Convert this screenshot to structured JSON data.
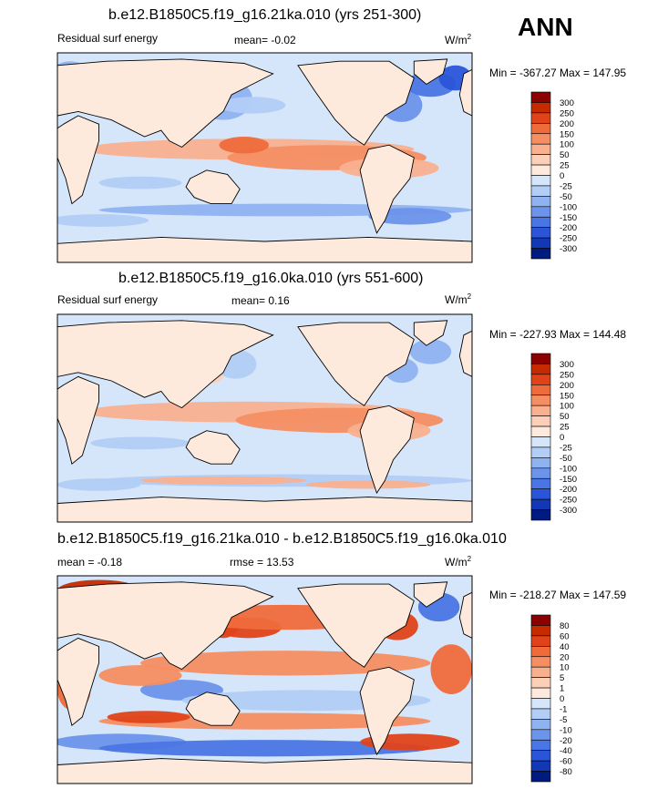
{
  "season": "ANN",
  "panels": [
    {
      "title": "b.e12.B1850C5.f19_g16.21ka.010 (yrs 251-300)",
      "left_label": "Residual surf energy",
      "mean_text": "mean=  -0.02",
      "rmse_text": "",
      "units_base": "W/m",
      "units_exp": "2",
      "minmax": "Min = -367.27 Max = 147.95",
      "levels": [
        "300",
        "250",
        "200",
        "150",
        "100",
        "50",
        "25",
        "0",
        "-25",
        "-50",
        "-100",
        "-150",
        "-200",
        "-250",
        "-300"
      ],
      "variant": "field"
    },
    {
      "title": "b.e12.B1850C5.f19_g16.0ka.010 (yrs 551-600)",
      "left_label": "Residual surf energy",
      "mean_text": "mean=  0.16",
      "rmse_text": "",
      "units_base": "W/m",
      "units_exp": "2",
      "minmax": "Min = -227.93 Max = 144.48",
      "levels": [
        "300",
        "250",
        "200",
        "150",
        "100",
        "50",
        "25",
        "0",
        "-25",
        "-50",
        "-100",
        "-150",
        "-200",
        "-250",
        "-300"
      ],
      "variant": "field"
    },
    {
      "title": "b.e12.B1850C5.f19_g16.21ka.010 - b.e12.B1850C5.f19_g16.0ka.010",
      "left_label": "mean =  -0.18",
      "mean_text": "rmse =  13.53",
      "rmse_text": "",
      "units_base": "W/m",
      "units_exp": "2",
      "minmax": "Min = -218.27 Max = 147.59",
      "levels": [
        "80",
        "60",
        "40",
        "20",
        "10",
        "5",
        "1",
        "0",
        "-1",
        "-5",
        "-10",
        "-20",
        "-40",
        "-60",
        "-80"
      ],
      "variant": "diff"
    }
  ],
  "colors": {
    "scale": [
      "#8b0000",
      "#c62b00",
      "#e0431a",
      "#ef6b3c",
      "#f58e62",
      "#f9b08f",
      "#fcd0b8",
      "#fdeadc",
      "#d5e6fb",
      "#b2cdf6",
      "#8fb2f0",
      "#6b94ea",
      "#4a75e4",
      "#2a55d8",
      "#1238b6",
      "#001b80"
    ],
    "land_field": "#fdeadc",
    "ocean_field": "#d5e6fb",
    "land_diff": "#fdeadc",
    "ocean_diff": "#d5e6fb"
  },
  "chart_data": [
    {
      "type": "heatmap",
      "title": "b.e12.B1850C5.f19_g16.21ka.010 (yrs 251-300)",
      "subtitle": "Residual surf energy",
      "units": "W/m2",
      "mean": -0.02,
      "min": -367.27,
      "max": 147.95,
      "levels": [
        300,
        250,
        200,
        150,
        100,
        50,
        25,
        0,
        -25,
        -50,
        -100,
        -150,
        -200,
        -250,
        -300
      ]
    },
    {
      "type": "heatmap",
      "title": "b.e12.B1850C5.f19_g16.0ka.010 (yrs 551-600)",
      "subtitle": "Residual surf energy",
      "units": "W/m2",
      "mean": 0.16,
      "min": -227.93,
      "max": 144.48,
      "levels": [
        300,
        250,
        200,
        150,
        100,
        50,
        25,
        0,
        -25,
        -50,
        -100,
        -150,
        -200,
        -250,
        -300
      ]
    },
    {
      "type": "heatmap",
      "title": "b.e12.B1850C5.f19_g16.21ka.010 - b.e12.B1850C5.f19_g16.0ka.010",
      "units": "W/m2",
      "mean": -0.18,
      "rmse": 13.53,
      "min": -218.27,
      "max": 147.59,
      "levels": [
        80,
        60,
        40,
        20,
        10,
        5,
        1,
        0,
        -1,
        -5,
        -10,
        -20,
        -40,
        -60,
        -80
      ]
    }
  ]
}
